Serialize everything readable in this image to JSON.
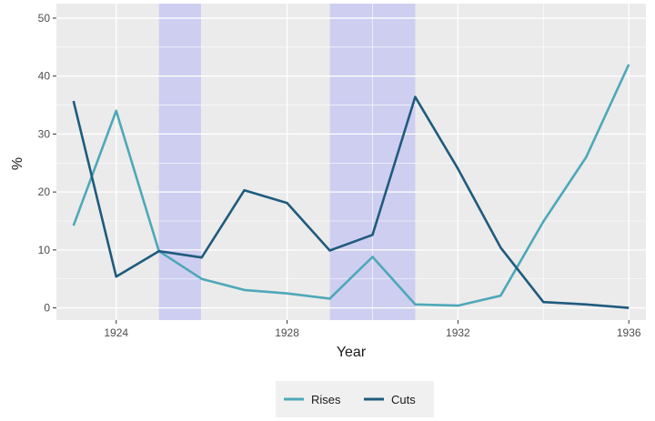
{
  "chart_data": {
    "type": "line",
    "xlabel": "Year",
    "ylabel": "%",
    "xlim": [
      1922.6,
      1936.4
    ],
    "ylim": [
      -2.1,
      52.5
    ],
    "x_ticks": [
      1924,
      1928,
      1932,
      1936
    ],
    "x_tick_labels": [
      "1924",
      "1928",
      "1932",
      "1936"
    ],
    "y_ticks": [
      0,
      10,
      20,
      30,
      40,
      50
    ],
    "y_tick_labels": [
      "0",
      "10",
      "20",
      "30",
      "40",
      "50"
    ],
    "grid": true,
    "legend_position": "bottom",
    "shaded_periods": [
      {
        "start": 1925,
        "end": 1926
      },
      {
        "start": 1929,
        "end": 1931
      }
    ],
    "shade_color": "#c9c9f2",
    "series": [
      {
        "name": "Rises",
        "color": "#4ea8b9",
        "x": [
          1923,
          1924,
          1925,
          1926,
          1927,
          1928,
          1929,
          1930,
          1931,
          1932,
          1933,
          1934,
          1935,
          1936
        ],
        "values": [
          14.2,
          34.0,
          9.8,
          5.0,
          3.1,
          2.5,
          1.6,
          8.8,
          0.6,
          0.4,
          2.1,
          14.9,
          26.0,
          42.0
        ]
      },
      {
        "name": "Cuts",
        "color": "#1f5b7e",
        "x": [
          1923,
          1924,
          1925,
          1926,
          1927,
          1928,
          1929,
          1930,
          1931,
          1932,
          1933,
          1934,
          1935,
          1936
        ],
        "values": [
          35.7,
          5.4,
          9.8,
          8.7,
          20.3,
          18.1,
          9.9,
          12.6,
          36.4,
          24.0,
          10.4,
          1.0,
          0.6,
          0.0
        ]
      }
    ]
  }
}
